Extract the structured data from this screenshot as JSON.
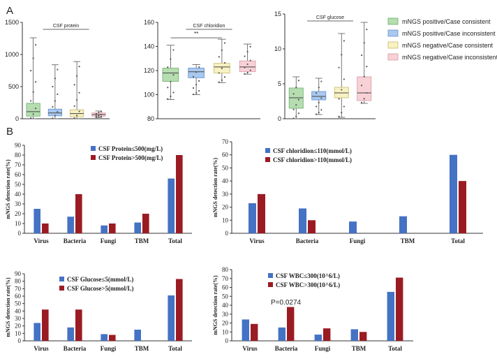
{
  "panel_labels": {
    "A": "A",
    "B": "B"
  },
  "colors": {
    "green": "#b5ddb0",
    "green_edge": "#6aaf6a",
    "blue": "#a9c8ef",
    "blue_edge": "#5f8fd0",
    "yellow": "#f7f1c3",
    "yellow_edge": "#c9bb6a",
    "pink": "#f8d1d6",
    "pink_edge": "#d89aa3",
    "bar_blue": "#4472c4",
    "bar_red": "#9b1b23",
    "axis": "#333333"
  },
  "legend_a": [
    {
      "label": "mNGS positive/Case consistent",
      "color_key": "green"
    },
    {
      "label": "mNGS positive/Case inconsistent",
      "color_key": "blue"
    },
    {
      "label": "mNGS negative/Case consistent",
      "color_key": "yellow"
    },
    {
      "label": "mNGS negative/Case inconsistent",
      "color_key": "pink"
    }
  ],
  "chart_data": [
    {
      "type": "box",
      "title": "CSF protein",
      "ylim": [
        0,
        1500
      ],
      "yticks": [
        0,
        500,
        1000,
        1500
      ],
      "boxes": [
        {
          "min": 0,
          "q1": 40,
          "median": 110,
          "q3": 240,
          "max": 1260
        },
        {
          "min": 0,
          "q1": 45,
          "median": 90,
          "q3": 150,
          "max": 840
        },
        {
          "min": 0,
          "q1": 30,
          "median": 80,
          "q3": 140,
          "max": 890
        },
        {
          "min": 20,
          "q1": 40,
          "median": 65,
          "q3": 90,
          "max": 120
        }
      ],
      "annotation": ""
    },
    {
      "type": "box",
      "title": "CSF chloridion",
      "ylim": [
        80,
        160
      ],
      "yticks": [
        80,
        100,
        120,
        140,
        160
      ],
      "boxes": [
        {
          "min": 96,
          "q1": 111,
          "median": 118,
          "q3": 122,
          "max": 141
        },
        {
          "min": 100,
          "q1": 114,
          "median": 119,
          "q3": 122,
          "max": 125
        },
        {
          "min": 110,
          "q1": 118,
          "median": 123,
          "q3": 126,
          "max": 146
        },
        {
          "min": 117,
          "q1": 119,
          "median": 123,
          "q3": 128,
          "max": 142
        }
      ],
      "annotation": "**"
    },
    {
      "type": "box",
      "title": "CSF glucose",
      "ylim": [
        0,
        15
      ],
      "yticks": [
        0,
        5,
        10,
        15
      ],
      "boxes": [
        {
          "min": 0,
          "q1": 1.5,
          "median": 3.0,
          "q3": 4.4,
          "max": 6.0
        },
        {
          "min": 0.6,
          "q1": 2.7,
          "median": 3.2,
          "q3": 3.9,
          "max": 5.8
        },
        {
          "min": 0.2,
          "q1": 3.0,
          "median": 3.7,
          "q3": 4.5,
          "max": 12.2
        },
        {
          "min": 2.2,
          "q1": 2.6,
          "median": 3.7,
          "q3": 6.0,
          "max": 13.8
        }
      ],
      "annotation": ""
    },
    {
      "type": "bar",
      "categories": [
        "Virus",
        "Bacteria",
        "Fungi",
        "TBM",
        "Total"
      ],
      "series": [
        {
          "name": "CSF Protein≤500(mg/L)",
          "values": [
            25,
            17,
            8,
            11,
            56
          ]
        },
        {
          "name": "CSF Protein>500(mg/L)",
          "values": [
            10,
            40,
            10,
            20,
            80
          ]
        }
      ],
      "ylabel": "mNGS detection rate(%)",
      "ylim": [
        0,
        90
      ],
      "yticks": [
        0,
        10,
        20,
        30,
        40,
        50,
        60,
        70,
        80,
        90
      ],
      "note": ""
    },
    {
      "type": "bar",
      "categories": [
        "Virus",
        "Bacteria",
        "Fungi",
        "TBM",
        "Total"
      ],
      "series": [
        {
          "name": "CSF chloridion≤110(mmol/L)",
          "values": [
            23,
            19,
            9,
            13,
            60
          ]
        },
        {
          "name": "CSF chloridion>110(mmol/L)",
          "values": [
            30,
            10,
            0,
            0,
            40
          ]
        }
      ],
      "ylabel": "mNGS detection rate(%)",
      "ylim": [
        0,
        70
      ],
      "yticks": [
        0,
        10,
        20,
        30,
        40,
        50,
        60,
        70
      ],
      "note": ""
    },
    {
      "type": "bar",
      "categories": [
        "Virus",
        "Bacteria",
        "Fungi",
        "TBM",
        "Total"
      ],
      "series": [
        {
          "name": "CSF Glucose≤5(mmol/L)",
          "values": [
            24,
            18,
            9,
            15,
            61
          ]
        },
        {
          "name": "CSF Glucose>5(mmol/L)",
          "values": [
            42,
            42,
            8,
            0,
            83
          ]
        }
      ],
      "ylabel": "mNGS detection rate(%)",
      "ylim": [
        0,
        90
      ],
      "yticks": [
        0,
        10,
        20,
        30,
        40,
        50,
        60,
        70,
        80,
        90
      ],
      "note": ""
    },
    {
      "type": "bar",
      "categories": [
        "Virus",
        "Bacteria",
        "Fungi",
        "TBM",
        "Total"
      ],
      "series": [
        {
          "name": "CSF WBC≤300(10^6/L)",
          "values": [
            24,
            15,
            7,
            13,
            55
          ]
        },
        {
          "name": "CSF WBC>300(10^6/L)",
          "values": [
            19,
            38,
            14,
            10,
            71
          ]
        }
      ],
      "ylabel": "mNGS detection rate(%)",
      "ylim": [
        0,
        80
      ],
      "yticks": [
        0,
        10,
        20,
        30,
        40,
        50,
        60,
        70,
        80
      ],
      "note": "P=0.0274"
    }
  ]
}
